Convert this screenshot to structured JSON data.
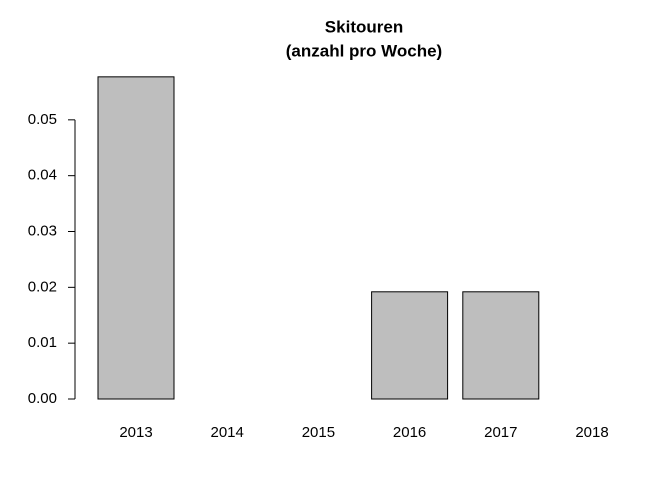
{
  "chart_data": {
    "type": "bar",
    "title": "Skitouren",
    "subtitle": "(anzahl pro Woche)",
    "categories": [
      "2013",
      "2014",
      "2015",
      "2016",
      "2017",
      "2018"
    ],
    "values": [
      0.0577,
      0,
      0,
      0.0192,
      0.0192,
      null
    ],
    "color": "#bebebe",
    "ylim": [
      0,
      0.06
    ],
    "yticks": [
      {
        "value": 0,
        "label": "0.00"
      },
      {
        "value": 0.01,
        "label": "0.01"
      },
      {
        "value": 0.02,
        "label": "0.02"
      },
      {
        "value": 0.03,
        "label": "0.03"
      },
      {
        "value": 0.04,
        "label": "0.04"
      },
      {
        "value": 0.05,
        "label": "0.05"
      }
    ]
  }
}
